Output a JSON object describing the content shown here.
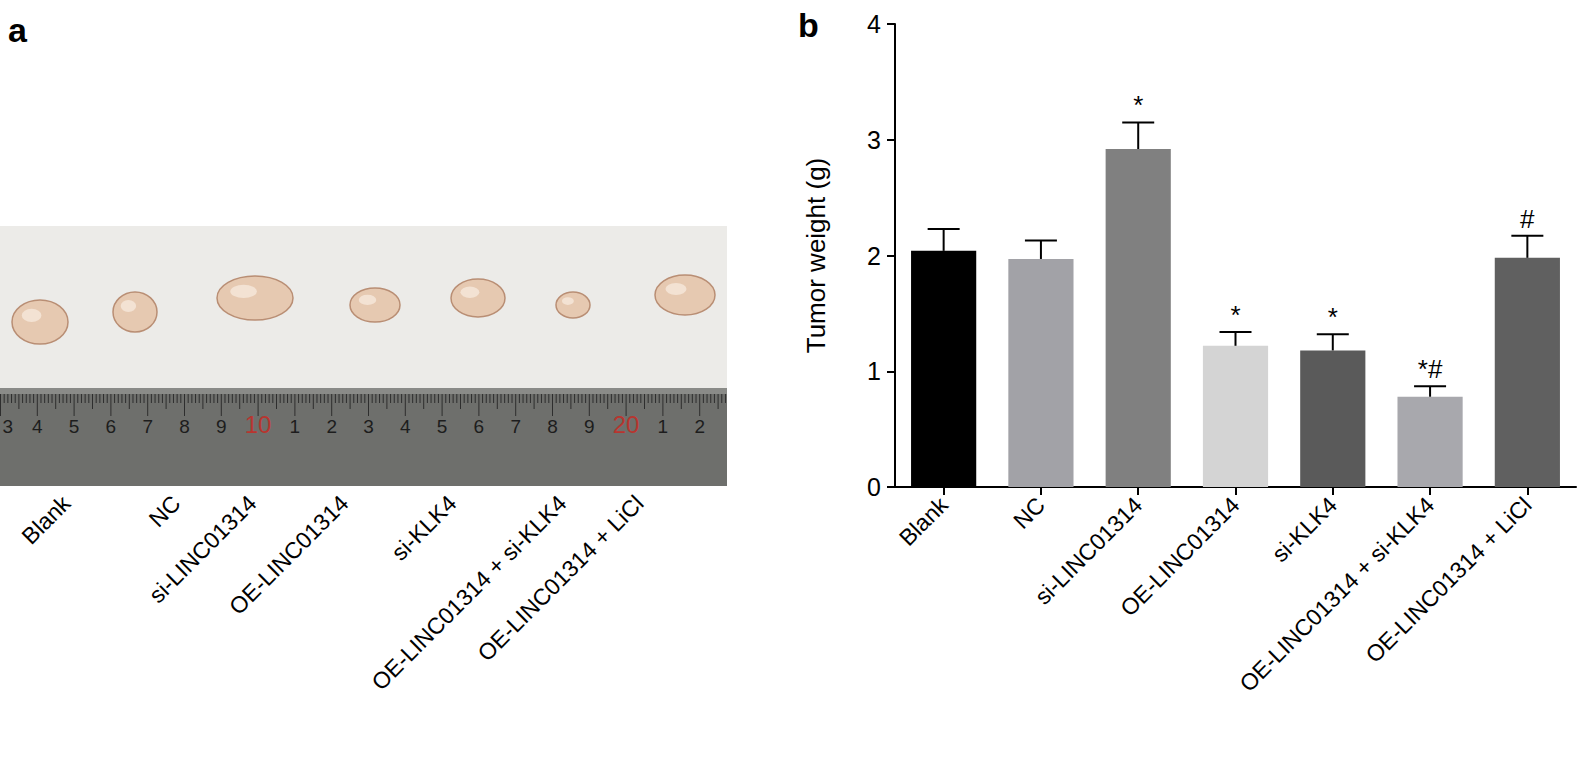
{
  "chart_data": {
    "type": "bar",
    "panel_label": "b",
    "y_label": "Tumor weight (g)",
    "categories": [
      "Blank",
      "NC",
      "si-LINC01314",
      "OE-LINC01314",
      "si-KLK4",
      "OE-LINC01314 + si-KLK4",
      "OE-LINC01314 + LiCl"
    ],
    "values": [
      2.04,
      1.97,
      2.92,
      1.22,
      1.18,
      0.78,
      1.98
    ],
    "errors": [
      0.19,
      0.16,
      0.23,
      0.12,
      0.14,
      0.09,
      0.19
    ],
    "annotations": [
      null,
      null,
      "*",
      "*",
      "*",
      "*#",
      "#"
    ],
    "colors": [
      "#000000",
      "#a2a2a7",
      "#808080",
      "#d4d4d4",
      "#5a5a5a",
      "#a8a8ad",
      "#606060"
    ],
    "ylim": [
      0,
      4
    ],
    "yticks": [
      0,
      1,
      2,
      3,
      4
    ],
    "grid": false
  },
  "photo_panel": {
    "panel_label": "a",
    "samples": [
      "Blank",
      "NC",
      "si-LINC01314",
      "OE-LINC01314",
      "si-KLK4",
      "OE-LINC01314 + si-KLK4",
      "OE-LINC01314 + LiCl"
    ],
    "ruler_labels": [
      "3",
      "4",
      "5",
      "6",
      "7",
      "8",
      "9",
      "10",
      "1",
      "2",
      "3",
      "4",
      "5",
      "6",
      "7",
      "8",
      "9",
      "20",
      "1",
      "2"
    ]
  }
}
